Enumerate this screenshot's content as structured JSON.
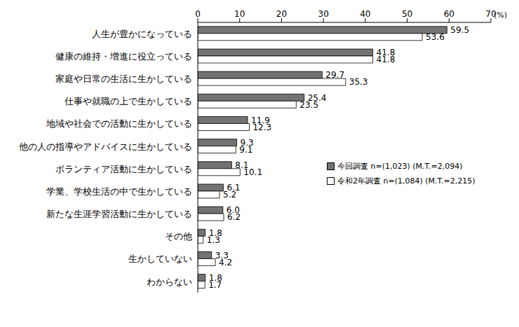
{
  "chart_data": {
    "type": "bar",
    "orientation": "horizontal",
    "xlabel": "(%)",
    "categories": [
      "人生が豊かになっている",
      "健康の維持・増進に役立っている",
      "家庭や日常の生活に生かしている",
      "仕事や就職の上で生かしている",
      "地域や社会での活動に生かしている",
      "他の人の指導やアドバイスに生かしている",
      "ボランティア活動に生かしている",
      "学業、学校生活の中で生かしている",
      "新たな生涯学習活動に生かしている",
      "その他",
      "生かしていない",
      "わからない"
    ],
    "series": [
      {
        "name": "今回調査 n=(1,023) (M.T.=2,094)",
        "color": "#737373",
        "values": [
          59.5,
          41.8,
          29.7,
          25.4,
          11.9,
          9.3,
          8.1,
          6.1,
          6.0,
          1.8,
          3.3,
          1.8
        ],
        "value_labels": [
          "59.5",
          "41.8",
          "29.7",
          "25.4",
          "11.9",
          "9.3",
          "8.1",
          "6.1",
          "6.0",
          "1.8",
          "3.3",
          "1.8"
        ]
      },
      {
        "name": "令和2年調査 n=(1,084) (M.T.=2,215)",
        "color": "#ffffff",
        "values": [
          53.6,
          41.8,
          35.3,
          23.5,
          12.3,
          9.1,
          10.1,
          5.2,
          6.2,
          1.3,
          4.2,
          1.7
        ],
        "value_labels": [
          "53.6",
          "41.8",
          "35.3",
          "23.5",
          "12.3",
          "9.1",
          "10.1",
          "5.2",
          "6.2",
          "1.3",
          "4.2",
          "1.7"
        ]
      }
    ],
    "xlim": [
      0,
      70
    ],
    "xticks": [
      0,
      10,
      20,
      30,
      40,
      50,
      60,
      70
    ],
    "grid": false,
    "legend": "right",
    "data_labels": true
  }
}
